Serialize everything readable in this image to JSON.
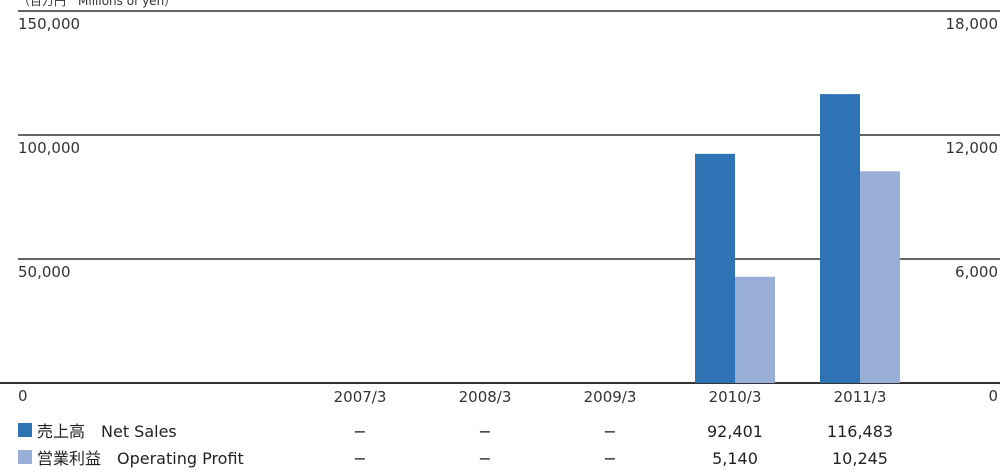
{
  "chart_data": {
    "type": "bar",
    "unit_label": "（百万円　Millions of yen）",
    "categories": [
      "2007/3",
      "2008/3",
      "2009/3",
      "2010/3",
      "2011/3"
    ],
    "series": [
      {
        "name": "売上高　Net Sales",
        "axis": "left",
        "color": "#2e74b5",
        "values": [
          null,
          null,
          null,
          92401,
          116483
        ],
        "labels": [
          "−",
          "−",
          "−",
          "92,401",
          "116,483"
        ]
      },
      {
        "name": "営業利益　Operating Profit",
        "axis": "right",
        "color": "#9aafd8",
        "values": [
          null,
          null,
          null,
          5140,
          10245
        ],
        "labels": [
          "−",
          "−",
          "−",
          "5,140",
          "10,245"
        ]
      }
    ],
    "y_left": {
      "ylim": [
        0,
        150000
      ],
      "ticks": [
        "0",
        "50,000",
        "100,000",
        "150,000"
      ]
    },
    "y_right": {
      "ylim": [
        0,
        18000
      ],
      "ticks": [
        "0",
        "6,000",
        "12,000",
        "18,000"
      ]
    },
    "grid": true,
    "legend": "bottom-left"
  }
}
